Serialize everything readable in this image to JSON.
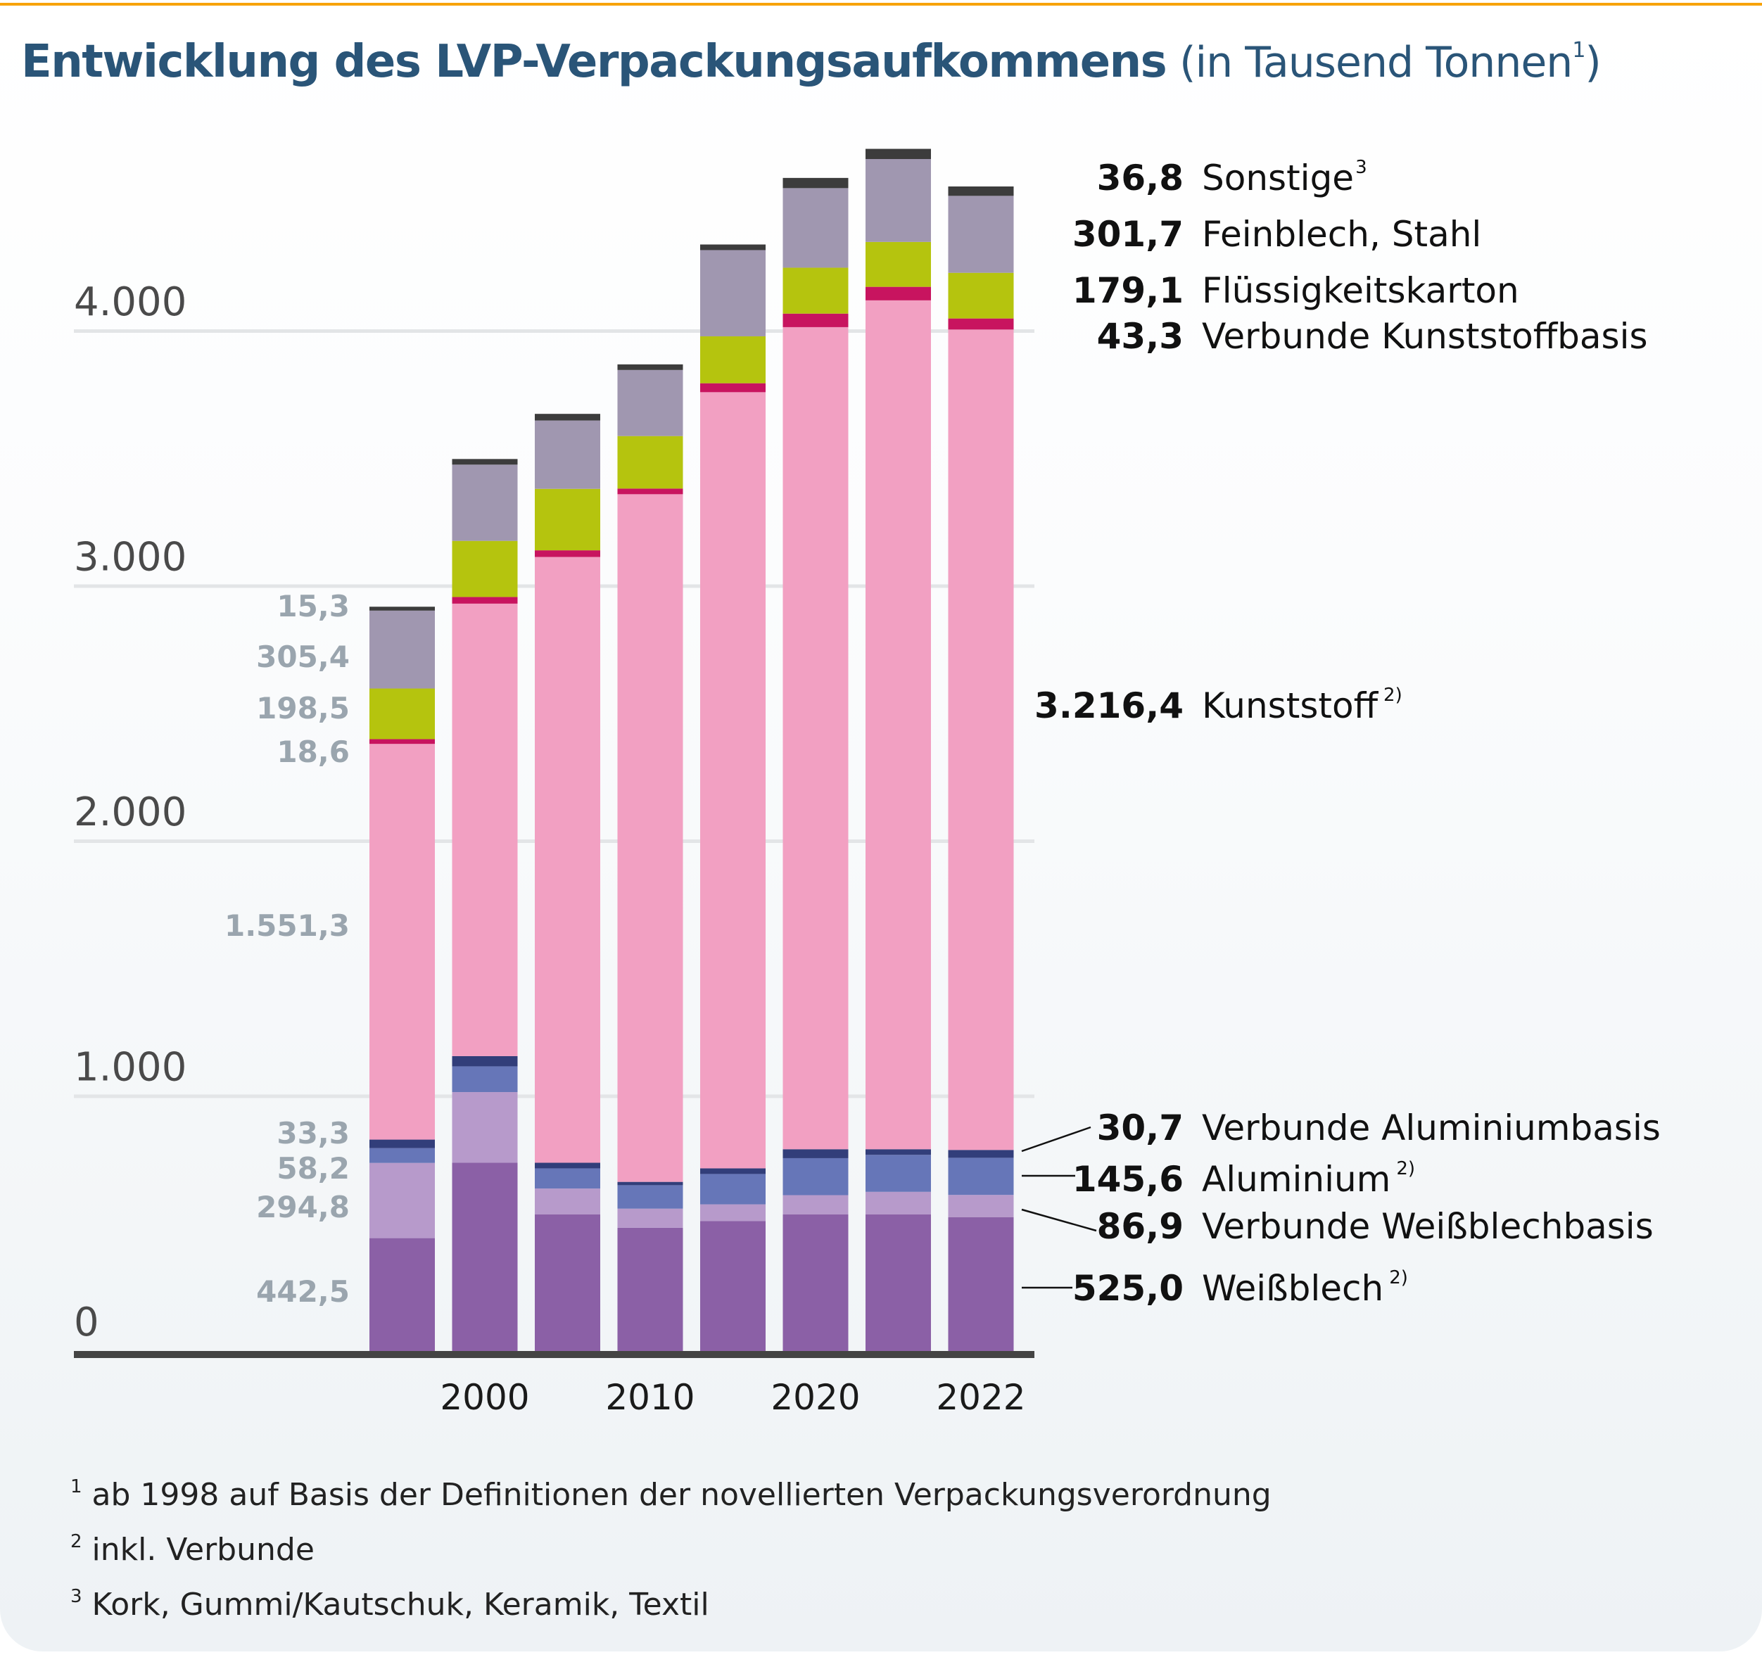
{
  "title": {
    "main": "Entwicklung des LVP-Verpackungsaufkommens",
    "unit_prefix": "(in Tausend Tonnen",
    "unit_sup": "1",
    "unit_suffix": ")"
  },
  "colors": {
    "accent_rule": "#F7A30A",
    "title": "#2A5578"
  },
  "chart_data": {
    "type": "bar",
    "stacked": true,
    "title": "Entwicklung des LVP-Verpackungsaufkommens (in Tausend Tonnen)",
    "xlabel": "",
    "ylabel": "",
    "ylim": [
      0,
      4750
    ],
    "yticks": [
      0,
      1000,
      2000,
      3000,
      4000
    ],
    "ytick_labels": [
      "0",
      "1.000",
      "2.000",
      "3.000",
      "4.000"
    ],
    "grid": true,
    "categories": [
      "",
      "2000",
      "",
      "2010",
      "",
      "2020",
      "",
      "2022"
    ],
    "series": [
      {
        "name": "Weißblech",
        "sup": "2)",
        "color": "#8B60A6",
        "values": [
          442.5,
          738,
          536,
          483,
          509,
          536,
          536,
          525.0
        ]
      },
      {
        "name": "Verbunde Weißblechbasis",
        "sup": "",
        "color": "#B79ACB",
        "values": [
          294.8,
          277,
          101,
          75,
          66,
          75,
          88,
          86.9
        ]
      },
      {
        "name": "Aluminium",
        "sup": "2)",
        "color": "#6676B8",
        "values": [
          58.2,
          101,
          79,
          92,
          119,
          145,
          145,
          145.6
        ]
      },
      {
        "name": "Verbunde Aluminiumbasis",
        "sup": "",
        "color": "#323E7A",
        "values": [
          33.3,
          40,
          22,
          13,
          22,
          35,
          22,
          30.7
        ]
      },
      {
        "name": "Kunststoff",
        "sup": "2)",
        "color": "#F2A0C2",
        "values": [
          1551.3,
          1774,
          2375,
          2696,
          3043,
          3223,
          3328,
          3216.4
        ]
      },
      {
        "name": "Verbunde Kunststoffbasis",
        "sup": "",
        "color": "#C8145F",
        "values": [
          18.6,
          26,
          26,
          22,
          35,
          53,
          53,
          43.3
        ]
      },
      {
        "name": "Flüssigkeitskarton",
        "sup": "",
        "color": "#B5C40E",
        "values": [
          198.5,
          220,
          241,
          206,
          184,
          180,
          176,
          179.1
        ]
      },
      {
        "name": "Feinblech, Stahl",
        "sup": "",
        "color": "#A097B0",
        "values": [
          305.4,
          299,
          268,
          259,
          338,
          312,
          325,
          301.7
        ]
      },
      {
        "name": "Sonstige",
        "sup": "3",
        "color": "#3C3C3C",
        "values": [
          15.3,
          22,
          26,
          22,
          22,
          40,
          40,
          36.8
        ]
      }
    ],
    "left_labels": [
      {
        "series": "Sonstige",
        "text": "15,3"
      },
      {
        "series": "Feinblech, Stahl",
        "text": "305,4"
      },
      {
        "series": "Flüssigkeitskarton",
        "text": "198,5"
      },
      {
        "series": "Verbunde Kunststoffbasis",
        "text": "18,6"
      },
      {
        "series": "Kunststoff",
        "text": "1.551,3"
      },
      {
        "series": "Verbunde Aluminiumbasis",
        "text": "33,3"
      },
      {
        "series": "Aluminium",
        "text": "58,2"
      },
      {
        "series": "Verbunde Weißblechbasis",
        "text": "294,8"
      },
      {
        "series": "Weißblech",
        "text": "442,5"
      }
    ],
    "right_labels": [
      {
        "value": "36,8",
        "name": "Sonstige",
        "sup": "3",
        "connector": false
      },
      {
        "value": "301,7",
        "name": "Feinblech, Stahl",
        "sup": "",
        "connector": false
      },
      {
        "value": "179,1",
        "name": "Flüssigkeitskarton",
        "sup": "",
        "connector": false
      },
      {
        "value": "43,3",
        "name": "Verbunde Kunststoffbasis",
        "sup": "",
        "connector": false
      },
      {
        "value": "3.216,4",
        "name": "Kunststoff",
        "sup": "2)",
        "connector": false
      },
      {
        "value": "30,7",
        "name": "Verbunde Aluminiumbasis",
        "sup": "",
        "connector": true
      },
      {
        "value": "145,6",
        "name": "Aluminium",
        "sup": "2)",
        "connector": true
      },
      {
        "value": "86,9",
        "name": "Verbunde Weißblechbasis",
        "sup": "",
        "connector": true
      },
      {
        "value": "525,0",
        "name": "Weißblech",
        "sup": "2)",
        "connector": true
      }
    ],
    "legend": "right"
  },
  "footnotes": [
    {
      "mark": "1",
      "text": "ab 1998 auf Basis der Definitionen der novellierten Verpackungsverordnung"
    },
    {
      "mark": "2",
      "text": "inkl. Verbunde"
    },
    {
      "mark": "3",
      "text": "Kork, Gummi/Kautschuk, Keramik, Textil"
    }
  ]
}
